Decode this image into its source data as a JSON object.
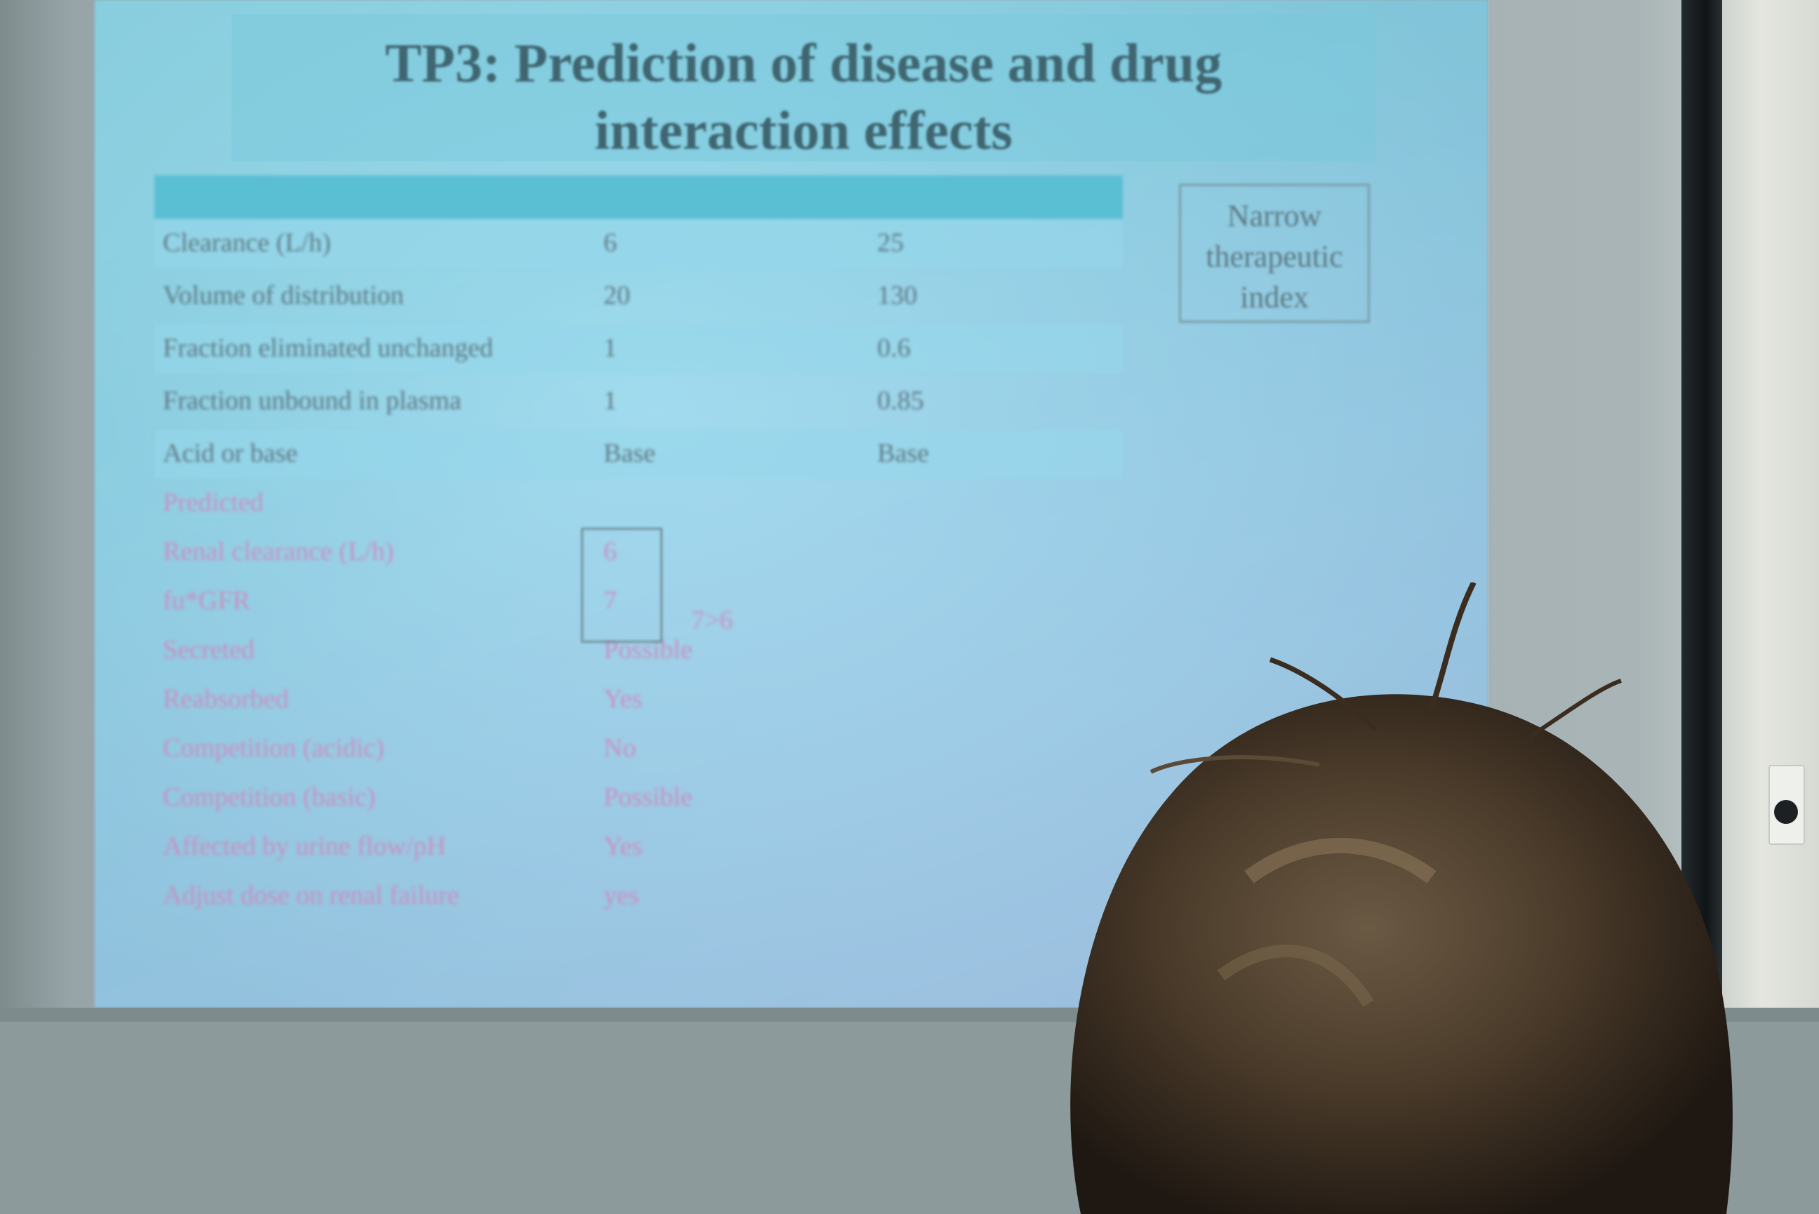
{
  "slide": {
    "title_line1": "TP3: Prediction of disease and drug",
    "title_line2": "interaction effects",
    "note": "Narrow therapeutic index",
    "side_note": "7>6"
  },
  "table": {
    "rows": [
      {
        "label": "Clearance (L/h)",
        "col2": "6",
        "col3": "25",
        "style": "dark"
      },
      {
        "label": "Volume of distribution",
        "col2": "20",
        "col3": "130",
        "style": "dark"
      },
      {
        "label": "Fraction eliminated unchanged",
        "col2": "1",
        "col3": "0.6",
        "style": "dark"
      },
      {
        "label": "Fraction unbound in plasma",
        "col2": "1",
        "col3": "0.85",
        "style": "dark"
      },
      {
        "label": "Acid or base",
        "col2": "Base",
        "col3": "Base",
        "style": "dark"
      },
      {
        "label": "Predicted",
        "col2": "",
        "col3": "",
        "style": "pink"
      },
      {
        "label": "Renal clearance (L/h)",
        "col2": "6",
        "col3": "",
        "style": "pink"
      },
      {
        "label": "fu*GFR",
        "col2": "7",
        "col3": "",
        "style": "pink"
      },
      {
        "label": "Secreted",
        "col2": "Possible",
        "col3": "",
        "style": "pink"
      },
      {
        "label": "Reabsorbed",
        "col2": "Yes",
        "col3": "",
        "style": "pink"
      },
      {
        "label": "Competition (acidic)",
        "col2": "No",
        "col3": "",
        "style": "pink"
      },
      {
        "label": "Competition (basic)",
        "col2": "Possible",
        "col3": "",
        "style": "pink"
      },
      {
        "label": "Affected by urine flow/pH",
        "col2": "Yes",
        "col3": "",
        "style": "pink"
      },
      {
        "label": "Adjust dose on renal failure",
        "col2": "yes",
        "col3": "",
        "style": "pink"
      }
    ]
  },
  "colors": {
    "slide_bg": "#92dcec",
    "header_band": "#5bbfd3",
    "text_dark": "#5e7a84",
    "text_pink": "#c98fc2"
  }
}
